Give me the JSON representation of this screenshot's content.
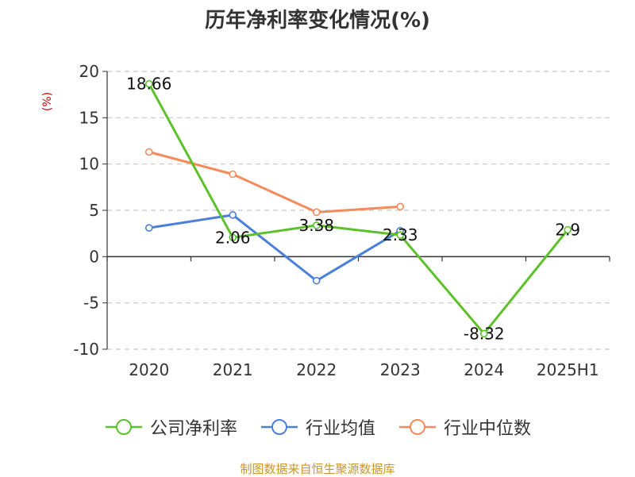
{
  "chart_data": {
    "type": "line",
    "title": "历年净利率变化情况(%)",
    "ylabel": "(%)",
    "xlabel": "",
    "categories": [
      "2020",
      "2021",
      "2022",
      "2023",
      "2024",
      "2025H1"
    ],
    "ylim": [
      -10,
      20
    ],
    "yticks": [
      20,
      15,
      10,
      5,
      0,
      -5,
      -10
    ],
    "grid": true,
    "legend_position": "bottom",
    "series": [
      {
        "name": "公司净利率",
        "color": "#5cc12a",
        "values": [
          18.66,
          2.06,
          3.38,
          2.33,
          -8.32,
          2.9
        ],
        "labels": [
          "18.66",
          "2.06",
          "3.38",
          "2.33",
          "-8.32",
          "2.9"
        ]
      },
      {
        "name": "行业均值",
        "color": "#4a7fdc",
        "values": [
          3.1,
          4.5,
          -2.6,
          2.8,
          null,
          null
        ]
      },
      {
        "name": "行业中位数",
        "color": "#f58b5a",
        "values": [
          11.3,
          8.9,
          4.8,
          5.4,
          null,
          null
        ]
      }
    ]
  },
  "source_text": "制图数据来自恒生聚源数据库"
}
